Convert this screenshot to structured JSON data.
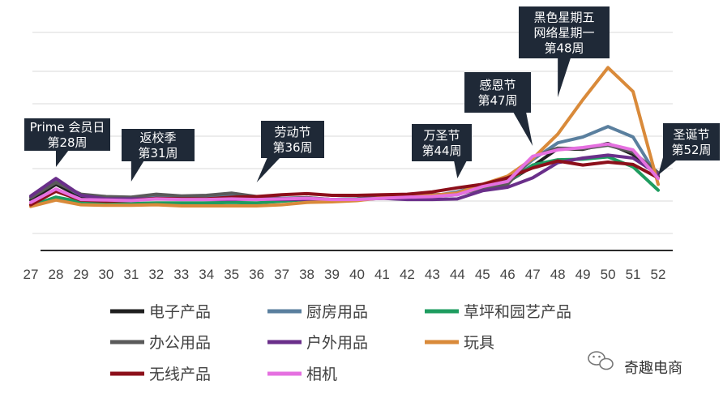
{
  "chart_data": {
    "type": "line",
    "x": [
      27,
      28,
      29,
      30,
      31,
      32,
      33,
      34,
      35,
      36,
      37,
      38,
      39,
      40,
      41,
      42,
      43,
      44,
      45,
      46,
      47,
      48,
      49,
      50,
      51,
      52
    ],
    "grid": "horizontal",
    "legend_position": "bottom",
    "series": [
      {
        "name": "电子产品",
        "color": "#1f1f1f",
        "values": [
          8.5,
          11.2,
          9.0,
          8.7,
          8.7,
          9.0,
          8.9,
          8.9,
          9.2,
          8.8,
          8.7,
          8.8,
          8.6,
          8.6,
          8.9,
          8.9,
          9.1,
          9.8,
          10.9,
          11.6,
          14.3,
          17.3,
          17.2,
          18.2,
          16.3,
          12.6
        ]
      },
      {
        "name": "厨房用品",
        "color": "#5a7f9e",
        "values": [
          9.1,
          11.7,
          9.3,
          8.9,
          8.8,
          9.3,
          9.0,
          9.0,
          9.3,
          8.9,
          8.8,
          8.9,
          8.6,
          8.7,
          9.0,
          9.1,
          9.2,
          9.9,
          11.1,
          11.8,
          15.4,
          18.3,
          19.3,
          21.1,
          19.3,
          12.3
        ]
      },
      {
        "name": "草坪和园艺产品",
        "color": "#1e9c5f",
        "values": [
          7.5,
          9.0,
          8.2,
          8.0,
          7.9,
          8.0,
          8.0,
          8.0,
          8.1,
          8.0,
          8.3,
          8.6,
          8.6,
          8.7,
          8.8,
          8.9,
          9.1,
          9.4,
          10.9,
          11.6,
          14.5,
          15.4,
          15.5,
          15.9,
          14.2,
          10.2
        ]
      },
      {
        "name": "办公用品",
        "color": "#5a5a5a",
        "values": [
          8.9,
          11.5,
          9.5,
          9.1,
          9.0,
          9.5,
          9.2,
          9.3,
          9.7,
          9.1,
          8.7,
          8.9,
          8.6,
          8.7,
          9.1,
          9.3,
          9.4,
          9.5,
          10.5,
          11.2,
          15.9,
          17.4,
          17.3,
          17.9,
          16.7,
          13.2
        ]
      },
      {
        "name": "户外用品",
        "color": "#6a2f8a",
        "values": [
          9.2,
          12.2,
          9.3,
          8.7,
          8.7,
          8.7,
          8.7,
          8.6,
          8.6,
          8.7,
          8.6,
          8.6,
          8.6,
          8.6,
          8.8,
          8.6,
          8.6,
          8.7,
          10.1,
          10.7,
          12.3,
          14.9,
          15.7,
          16.2,
          15.7,
          12.9
        ]
      },
      {
        "name": "玩具",
        "color": "#d98a3a",
        "values": [
          7.4,
          8.5,
          7.7,
          7.6,
          7.6,
          7.7,
          7.5,
          7.5,
          7.5,
          7.5,
          7.7,
          8.1,
          8.2,
          8.4,
          8.9,
          9.1,
          9.3,
          9.7,
          11.2,
          12.6,
          15.6,
          19.8,
          25.7,
          31.2,
          27.1,
          11.2
        ]
      },
      {
        "name": "无线产品",
        "color": "#8c0f1a",
        "values": [
          7.7,
          10.0,
          8.5,
          8.3,
          8.4,
          8.8,
          8.7,
          8.7,
          9.0,
          9.1,
          9.4,
          9.6,
          9.3,
          9.3,
          9.4,
          9.5,
          9.9,
          10.6,
          11.2,
          12.3,
          14.0,
          15.2,
          14.5,
          15.0,
          14.6,
          12.3
        ]
      },
      {
        "name": "相机",
        "color": "#e570e0",
        "values": [
          8.1,
          10.4,
          8.6,
          8.5,
          8.4,
          8.7,
          8.6,
          8.6,
          8.7,
          8.6,
          8.7,
          8.8,
          8.6,
          8.6,
          8.8,
          9.0,
          9.1,
          9.4,
          10.8,
          11.7,
          16.0,
          17.1,
          17.5,
          18.1,
          17.1,
          12.2
        ]
      }
    ],
    "annotations": [
      {
        "lines": [
          "Prime 会员日",
          "第28周"
        ],
        "week": 28
      },
      {
        "lines": [
          "返校季",
          "第31周"
        ],
        "week": 31
      },
      {
        "lines": [
          "劳动节",
          "第36周"
        ],
        "week": 36
      },
      {
        "lines": [
          "万圣节",
          "第44周"
        ],
        "week": 44
      },
      {
        "lines": [
          "感恩节",
          "第47周"
        ],
        "week": 47
      },
      {
        "lines": [
          "黑色星期五",
          "网络星期一",
          "第48周"
        ],
        "week": 48
      },
      {
        "lines": [
          "圣诞节",
          "第52周"
        ],
        "week": 52
      }
    ],
    "colors": {
      "callout_bg": "#1f2937",
      "grid": "#d9d9d9",
      "axis": "#2b2b2b"
    }
  },
  "watermark": {
    "text": "奇趣电商",
    "icon": "wechat-icon"
  }
}
